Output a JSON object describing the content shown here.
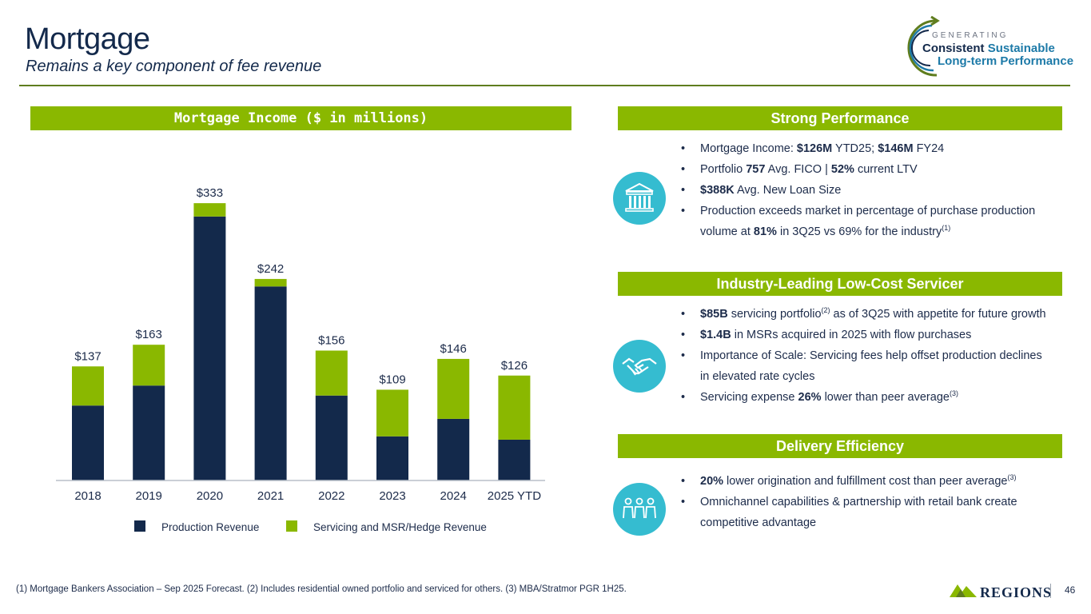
{
  "header": {
    "title": "Mortgage",
    "subtitle": "Remains a key component of fee revenue"
  },
  "logo": {
    "generating": "GENERATING",
    "consistent": "Consistent",
    "sustainable": "Sustainable",
    "long_term": "Long-term Performance"
  },
  "chart_header": "Mortgage Income ($ in millions)",
  "chart_data": {
    "type": "bar",
    "stacked": true,
    "title": "Mortgage Income ($ in millions)",
    "categories": [
      "2018",
      "2019",
      "2020",
      "2021",
      "2022",
      "2023",
      "2024",
      "2025 YTD"
    ],
    "series": [
      {
        "name": "Production Revenue",
        "color": "#13294b",
        "values": [
          90,
          114,
          317,
          233,
          102,
          53,
          74,
          49
        ]
      },
      {
        "name": "Servicing and MSR/Hedge Revenue",
        "color": "#8ab800",
        "values": [
          47,
          49,
          16,
          9,
          54,
          56,
          72,
          77
        ]
      }
    ],
    "totals": [
      137,
      163,
      333,
      242,
      156,
      109,
      146,
      126
    ],
    "total_labels": [
      "$137",
      "$163",
      "$333",
      "$242",
      "$156",
      "$109",
      "$146",
      "$126"
    ],
    "ylim": [
      0,
      360
    ],
    "xlabel": "",
    "ylabel": "",
    "legend": "bottom",
    "grid": false
  },
  "sections": [
    {
      "header": "Strong Performance",
      "icon": "bank-icon",
      "bullets": [
        [
          {
            "t": "Mortgage Income: "
          },
          {
            "t": "$126M",
            "b": true
          },
          {
            "t": " YTD25; "
          },
          {
            "t": "$146M",
            "b": true
          },
          {
            "t": " FY24"
          }
        ],
        [
          {
            "t": "Portfolio "
          },
          {
            "t": "757",
            "b": true
          },
          {
            "t": " Avg. FICO | "
          },
          {
            "t": "52%",
            "b": true
          },
          {
            "t": " current LTV"
          }
        ],
        [
          {
            "t": "$388K",
            "b": true
          },
          {
            "t": " Avg. New Loan Size"
          }
        ],
        [
          {
            "t": "Production exceeds market in percentage of purchase production volume at "
          },
          {
            "t": "81%",
            "b": true
          },
          {
            "t": " in 3Q25 vs 69% for the industry"
          },
          {
            "t": "(1)",
            "sup": true
          }
        ]
      ]
    },
    {
      "header": "Industry-Leading Low-Cost Servicer",
      "icon": "handshake-icon",
      "bullets": [
        [
          {
            "t": "$85B",
            "b": true
          },
          {
            "t": " servicing portfolio"
          },
          {
            "t": "(2)",
            "sup": true
          },
          {
            "t": " as of 3Q25 with appetite for future growth"
          }
        ],
        [
          {
            "t": "$1.4B",
            "b": true
          },
          {
            "t": " in MSRs acquired in 2025 with flow purchases"
          }
        ],
        [
          {
            "t": "Importance of Scale: Servicing fees help offset production declines in elevated rate cycles"
          }
        ],
        [
          {
            "t": "Servicing expense "
          },
          {
            "t": "26%",
            "b": true
          },
          {
            "t": " lower than peer average"
          },
          {
            "t": "(3)",
            "sup": true
          }
        ]
      ]
    },
    {
      "header": "Delivery Efficiency",
      "icon": "people-icon",
      "bullets": [
        [
          {
            "t": "20%",
            "b": true
          },
          {
            "t": " lower origination and fulfillment cost than peer average"
          },
          {
            "t": "(3)",
            "sup": true
          }
        ],
        [
          {
            "t": "Omnichannel capabilities & partnership with retail bank create competitive advantage"
          }
        ]
      ]
    }
  ],
  "footer": {
    "footnote": "(1) Mortgage Bankers Association – Sep 2025 Forecast. (2) Includes residential owned portfolio and serviced for others. (3) MBA/Stratmor PGR 1H25.",
    "brand": "REGIONS",
    "page": "46"
  },
  "colors": {
    "navy": "#13294b",
    "green": "#8ab800",
    "teal": "#35bcd0"
  }
}
